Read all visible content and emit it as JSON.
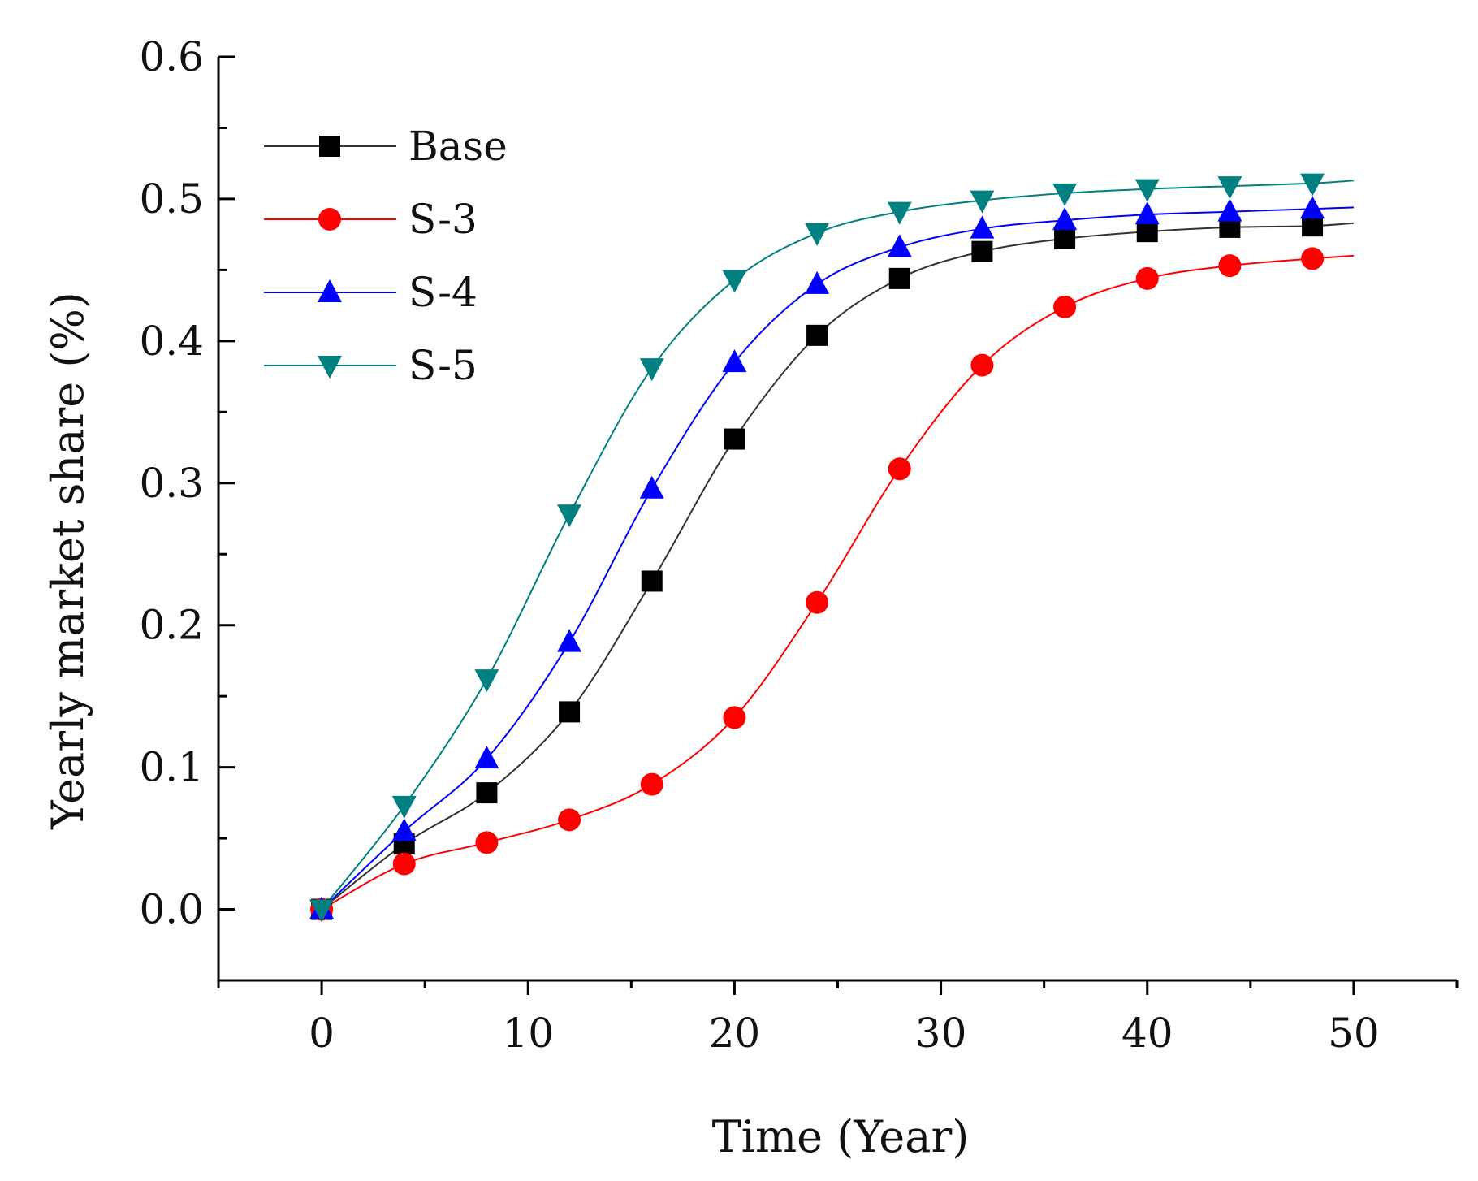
{
  "chart_data": {
    "type": "line",
    "title": "",
    "xlabel": "Time (Year)",
    "ylabel": "Yearly market share (%)",
    "xlim": [
      -5,
      55
    ],
    "ylim": [
      -0.05,
      0.6
    ],
    "xticks": [
      0,
      10,
      20,
      30,
      40,
      50
    ],
    "xtick_labels": [
      "0",
      "10",
      "20",
      "30",
      "40",
      "50"
    ],
    "yticks": [
      0.0,
      0.1,
      0.2,
      0.3,
      0.4,
      0.5,
      0.6
    ],
    "ytick_labels": [
      "0.0",
      "0.1",
      "0.2",
      "0.3",
      "0.4",
      "0.5",
      "0.6"
    ],
    "grid": false,
    "legend_position": "top-left",
    "x": [
      0,
      4,
      8,
      12,
      16,
      20,
      24,
      28,
      32,
      36,
      40,
      44,
      48
    ],
    "series": [
      {
        "name": "Base",
        "color": "#000000",
        "line_color": "#333333",
        "marker": "square",
        "values": [
          0.0,
          0.046,
          0.082,
          0.139,
          0.231,
          0.331,
          0.404,
          0.444,
          0.463,
          0.472,
          0.477,
          0.48,
          0.481
        ],
        "end_value": 0.483
      },
      {
        "name": "S-3",
        "color": "#ff0000",
        "line_color": "#ff0000",
        "marker": "circle",
        "values": [
          0.0,
          0.032,
          0.047,
          0.063,
          0.088,
          0.135,
          0.216,
          0.31,
          0.383,
          0.424,
          0.444,
          0.453,
          0.458
        ],
        "end_value": 0.46
      },
      {
        "name": "S-4",
        "color": "#0000ff",
        "line_color": "#0000ff",
        "marker": "triangle-up",
        "values": [
          0.0,
          0.055,
          0.106,
          0.188,
          0.296,
          0.385,
          0.44,
          0.466,
          0.479,
          0.485,
          0.489,
          0.491,
          0.493
        ],
        "end_value": 0.494
      },
      {
        "name": "S-5",
        "color": "#008080",
        "line_color": "#008080",
        "marker": "triangle-down",
        "values": [
          0.0,
          0.073,
          0.162,
          0.278,
          0.381,
          0.443,
          0.476,
          0.491,
          0.499,
          0.504,
          0.507,
          0.509,
          0.511
        ],
        "end_value": 0.513
      }
    ]
  }
}
